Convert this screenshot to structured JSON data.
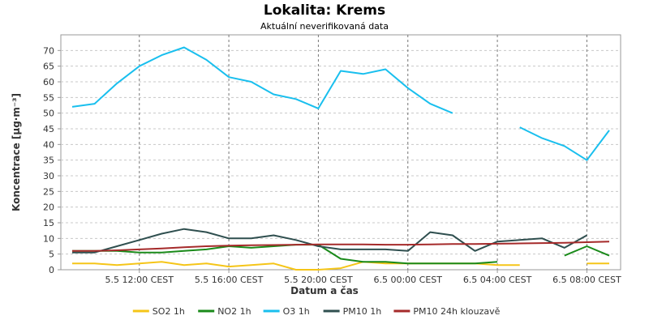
{
  "chart_data": {
    "type": "line",
    "title": "Lokalita: Krems",
    "subtitle": "Aktuální neverifikovaná data",
    "xlabel": "Datum a čas",
    "ylabel": "Koncentrace [µg·m⁻³]",
    "ylim": [
      0,
      75
    ],
    "yticks": [
      0,
      5,
      10,
      15,
      20,
      25,
      30,
      35,
      40,
      45,
      50,
      55,
      60,
      65,
      70
    ],
    "xlim": [
      "5.5 09:00",
      "6.5 09:00"
    ],
    "xticks": [
      "5.5 12:00 CEST",
      "5.5 16:00 CEST",
      "5.5 20:00 CEST",
      "6.5 00:00 CEST",
      "6.5 04:00 CEST",
      "6.5 08:00 CEST"
    ],
    "grid": true,
    "legend": "bottom",
    "x": [
      "5.5 09:00",
      "5.5 10:00",
      "5.5 11:00",
      "5.5 12:00",
      "5.5 13:00",
      "5.5 14:00",
      "5.5 15:00",
      "5.5 16:00",
      "5.5 17:00",
      "5.5 18:00",
      "5.5 19:00",
      "5.5 20:00",
      "5.5 21:00",
      "5.5 22:00",
      "5.5 23:00",
      "6.5 00:00",
      "6.5 01:00",
      "6.5 02:00",
      "6.5 03:00",
      "6.5 04:00",
      "6.5 05:00",
      "6.5 06:00",
      "6.5 07:00",
      "6.5 08:00",
      "6.5 09:00"
    ],
    "series": [
      {
        "name": "SO2 1h",
        "color": "#f5c518",
        "values": [
          2,
          2,
          1.5,
          2,
          2.5,
          1.5,
          2,
          1,
          1.5,
          2,
          0,
          0,
          0.5,
          2.5,
          2,
          2,
          2,
          2,
          2,
          1.5,
          1.5,
          null,
          null,
          2,
          2
        ]
      },
      {
        "name": "NO2 1h",
        "color": "#1a8a1a",
        "values": [
          6,
          6,
          6,
          5.5,
          5.5,
          6,
          6.5,
          7.5,
          7,
          7.5,
          8,
          8,
          3.5,
          2.5,
          2.5,
          2,
          2,
          2,
          2,
          2.5,
          null,
          null,
          4.5,
          7.5,
          4.5
        ]
      },
      {
        "name": "O3 1h",
        "color": "#19bfee",
        "values": [
          52,
          53,
          59.5,
          65,
          68.5,
          71,
          67,
          61.5,
          60,
          56,
          54.5,
          51.5,
          63.5,
          62.5,
          64,
          58,
          53,
          50,
          null,
          null,
          45.5,
          42,
          39.5,
          35,
          44.5
        ]
      },
      {
        "name": "PM10 1h",
        "color": "#2f4f4f",
        "values": [
          5.5,
          5.5,
          7.5,
          9.5,
          11.5,
          13,
          12,
          10,
          10,
          11,
          9.5,
          7.5,
          6.5,
          6.5,
          6.5,
          6,
          12,
          11,
          6,
          9,
          9.5,
          10,
          7,
          11,
          null
        ]
      },
      {
        "name": "PM10 24h klouzavě",
        "color": "#a52a2a",
        "values": [
          6,
          6,
          6.2,
          6.5,
          6.8,
          7.2,
          7.5,
          7.7,
          7.8,
          7.9,
          8,
          8.1,
          8.1,
          8.1,
          8,
          8,
          8.1,
          8.2,
          8.2,
          8.3,
          8.4,
          8.5,
          8.6,
          8.8,
          9
        ]
      }
    ]
  }
}
